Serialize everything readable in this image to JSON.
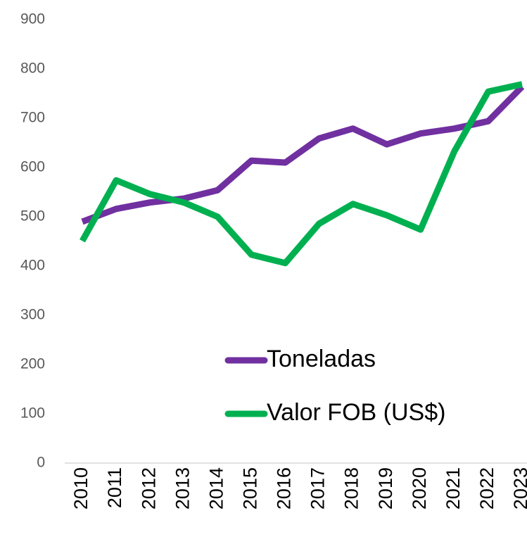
{
  "chart_data": {
    "type": "line",
    "categories": [
      "2010",
      "2011",
      "2012",
      "2013",
      "2014",
      "2015",
      "2016",
      "2017",
      "2018",
      "2019",
      "2020",
      "2021",
      "2022",
      "2023"
    ],
    "series": [
      {
        "name": "Toneladas",
        "color": "#7030a0",
        "values": [
          490,
          516,
          529,
          537,
          554,
          614,
          610,
          659,
          679,
          647,
          669,
          679,
          694,
          764
        ]
      },
      {
        "name": "Valor FOB (US$)",
        "color": "#00b050",
        "values": [
          451,
          574,
          546,
          529,
          500,
          423,
          406,
          486,
          526,
          503,
          474,
          633,
          754,
          769
        ]
      }
    ],
    "ylim": [
      0,
      900
    ],
    "yticks": [
      0,
      100,
      200,
      300,
      400,
      500,
      600,
      700,
      800,
      900
    ],
    "grid": false,
    "legend": "inside"
  }
}
